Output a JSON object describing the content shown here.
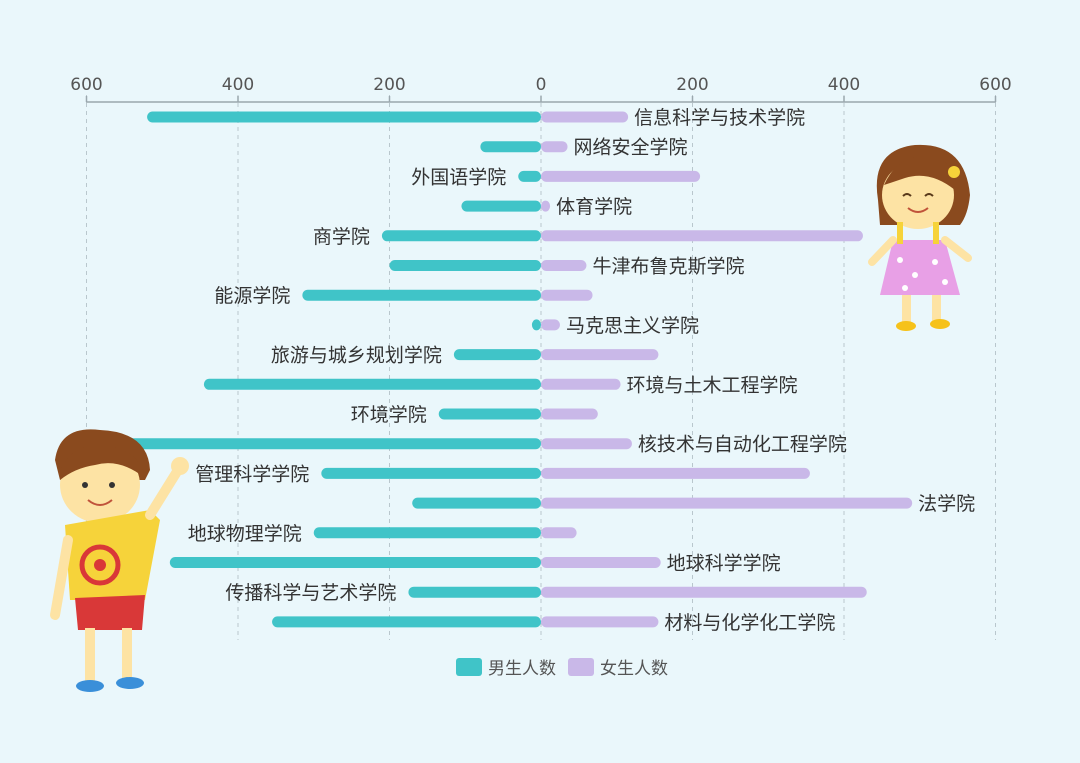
{
  "chart_data": {
    "type": "bar",
    "orientation": "horizontal-diverging",
    "grid": true,
    "legend_placement": "bottom-center",
    "xlim": [
      -600,
      600
    ],
    "x_ticks": [
      "600",
      "400",
      "200",
      "0",
      "200",
      "400",
      "600"
    ],
    "categories": [
      "信息科学与技术学院",
      "网络安全学院",
      "外国语学院",
      "体育学院",
      "商学院",
      "牛津布鲁克斯学院",
      "能源学院",
      "马克思主义学院",
      "旅游与城乡规划学院",
      "环境与土木工程学院",
      "环境学院",
      "核技术与自动化工程学院",
      "管理科学学院",
      "法学院",
      "地球物理学院",
      "地球科学学院",
      "传播科学与艺术学院",
      "材料与化学化工学院"
    ],
    "label_side": [
      "right",
      "right",
      "left",
      "right",
      "left",
      "right",
      "left",
      "right",
      "left",
      "right",
      "left",
      "right",
      "left",
      "right",
      "left",
      "right",
      "left",
      "right"
    ],
    "series": [
      {
        "name": "男生人数",
        "color": "#40c4c8",
        "values": [
          520,
          80,
          30,
          105,
          210,
          200,
          315,
          12,
          115,
          445,
          135,
          600,
          290,
          170,
          300,
          490,
          175,
          355
        ]
      },
      {
        "name": "女生人数",
        "color": "#c9b8e8",
        "values": [
          115,
          35,
          210,
          12,
          425,
          60,
          68,
          25,
          155,
          105,
          75,
          120,
          355,
          490,
          47,
          158,
          430,
          155
        ]
      }
    ]
  }
}
